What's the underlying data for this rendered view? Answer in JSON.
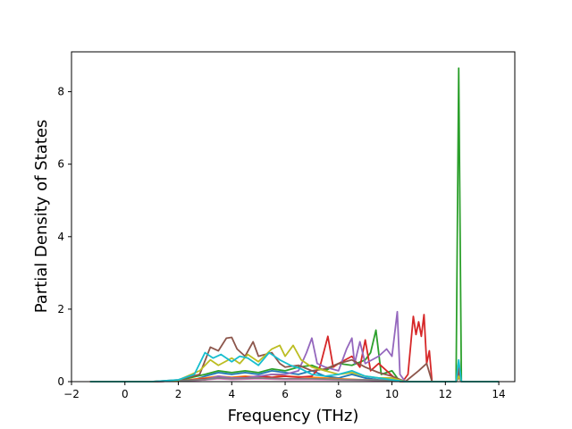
{
  "chart_data": {
    "type": "line",
    "xlabel": "Frequency (THz)",
    "ylabel": "Partial Density of States",
    "xlim": [
      -2,
      14.6
    ],
    "ylim": [
      0,
      9.1
    ],
    "x_ticks": [
      "−2",
      "0",
      "2",
      "4",
      "6",
      "8",
      "10",
      "12",
      "14"
    ],
    "y_ticks": [
      "0",
      "2",
      "4",
      "6",
      "8"
    ],
    "grid": false,
    "legend": "none",
    "series": [
      {
        "color": "#1f77b4",
        "points": [
          [
            -1.3,
            0
          ],
          [
            1,
            0
          ],
          [
            2,
            0.02
          ],
          [
            2.6,
            0.05
          ],
          [
            3,
            0.15
          ],
          [
            3.5,
            0.25
          ],
          [
            4,
            0.2
          ],
          [
            4.5,
            0.25
          ],
          [
            5,
            0.2
          ],
          [
            5.5,
            0.3
          ],
          [
            6,
            0.25
          ],
          [
            6.5,
            0.2
          ],
          [
            7,
            0.3
          ],
          [
            7.5,
            0.15
          ],
          [
            8,
            0.1
          ],
          [
            8.5,
            0.2
          ],
          [
            9,
            0.1
          ],
          [
            9.5,
            0.05
          ],
          [
            10,
            0.05
          ],
          [
            10.5,
            0
          ],
          [
            12.4,
            0
          ],
          [
            12.5,
            0.35
          ],
          [
            12.6,
            0
          ],
          [
            14,
            0
          ]
        ]
      },
      {
        "color": "#ff7f0e",
        "points": [
          [
            -1.3,
            0
          ],
          [
            1,
            0
          ],
          [
            2,
            0.02
          ],
          [
            3,
            0.1
          ],
          [
            3.5,
            0.15
          ],
          [
            4,
            0.12
          ],
          [
            4.5,
            0.15
          ],
          [
            5,
            0.12
          ],
          [
            5.5,
            0.2
          ],
          [
            6,
            0.15
          ],
          [
            7,
            0.12
          ],
          [
            8,
            0.08
          ],
          [
            9,
            0.05
          ],
          [
            10,
            0.03
          ],
          [
            10.5,
            0
          ],
          [
            12.4,
            0
          ],
          [
            12.5,
            0.15
          ],
          [
            12.6,
            0
          ],
          [
            14,
            0
          ]
        ]
      },
      {
        "color": "#2ca02c",
        "points": [
          [
            -1.3,
            0
          ],
          [
            1,
            0
          ],
          [
            2,
            0.03
          ],
          [
            3,
            0.2
          ],
          [
            3.5,
            0.3
          ],
          [
            4,
            0.25
          ],
          [
            4.5,
            0.3
          ],
          [
            5,
            0.25
          ],
          [
            5.5,
            0.35
          ],
          [
            6,
            0.3
          ],
          [
            6.5,
            0.4
          ],
          [
            7,
            0.45
          ],
          [
            7.5,
            0.3
          ],
          [
            8,
            0.5
          ],
          [
            8.5,
            0.45
          ],
          [
            9,
            0.6
          ],
          [
            9.2,
            0.8
          ],
          [
            9.4,
            1.42
          ],
          [
            9.6,
            0.2
          ],
          [
            10,
            0.3
          ],
          [
            10.3,
            0
          ],
          [
            12.4,
            0
          ],
          [
            12.5,
            8.65
          ],
          [
            12.6,
            0
          ],
          [
            14,
            0
          ]
        ]
      },
      {
        "color": "#d62728",
        "points": [
          [
            -1.3,
            0
          ],
          [
            1,
            0
          ],
          [
            2,
            0.02
          ],
          [
            3,
            0.08
          ],
          [
            3.5,
            0.12
          ],
          [
            4,
            0.1
          ],
          [
            4.5,
            0.12
          ],
          [
            5,
            0.15
          ],
          [
            5.5,
            0.12
          ],
          [
            6,
            0.15
          ],
          [
            6.5,
            0.12
          ],
          [
            7,
            0.15
          ],
          [
            7.3,
            0.4
          ],
          [
            7.6,
            1.25
          ],
          [
            7.8,
            0.4
          ],
          [
            8,
            0.5
          ],
          [
            8.5,
            0.7
          ],
          [
            8.8,
            0.4
          ],
          [
            9,
            1.15
          ],
          [
            9.2,
            0.3
          ],
          [
            9.5,
            0.5
          ],
          [
            9.8,
            0.3
          ],
          [
            10.1,
            0.1
          ],
          [
            10.4,
            0
          ],
          [
            10.6,
            0.2
          ],
          [
            10.8,
            1.8
          ],
          [
            10.9,
            1.3
          ],
          [
            11,
            1.65
          ],
          [
            11.1,
            1.25
          ],
          [
            11.2,
            1.85
          ],
          [
            11.3,
            0.5
          ],
          [
            11.4,
            0.85
          ],
          [
            11.5,
            0
          ],
          [
            12.4,
            0
          ],
          [
            12.5,
            0.4
          ],
          [
            12.6,
            0
          ],
          [
            14,
            0
          ]
        ]
      },
      {
        "color": "#9467bd",
        "points": [
          [
            -1.3,
            0
          ],
          [
            1,
            0
          ],
          [
            2,
            0.02
          ],
          [
            3,
            0.05
          ],
          [
            3.5,
            0.15
          ],
          [
            4,
            0.1
          ],
          [
            4.5,
            0.1
          ],
          [
            5,
            0.15
          ],
          [
            5.5,
            0.2
          ],
          [
            6,
            0.2
          ],
          [
            6.5,
            0.3
          ],
          [
            6.8,
            0.8
          ],
          [
            7,
            1.2
          ],
          [
            7.2,
            0.5
          ],
          [
            7.5,
            0.4
          ],
          [
            8,
            0.3
          ],
          [
            8.3,
            0.9
          ],
          [
            8.5,
            1.2
          ],
          [
            8.6,
            0.5
          ],
          [
            8.8,
            1.1
          ],
          [
            9,
            0.5
          ],
          [
            9.5,
            0.7
          ],
          [
            9.8,
            0.9
          ],
          [
            10,
            0.7
          ],
          [
            10.2,
            1.93
          ],
          [
            10.3,
            0.2
          ],
          [
            10.5,
            0
          ],
          [
            12.4,
            0
          ],
          [
            12.5,
            0.2
          ],
          [
            12.6,
            0
          ],
          [
            14,
            0
          ]
        ]
      },
      {
        "color": "#8c564b",
        "points": [
          [
            -1.3,
            0
          ],
          [
            1,
            0
          ],
          [
            2,
            0.05
          ],
          [
            2.8,
            0.2
          ],
          [
            3.2,
            0.95
          ],
          [
            3.5,
            0.85
          ],
          [
            3.8,
            1.2
          ],
          [
            4,
            1.22
          ],
          [
            4.2,
            0.9
          ],
          [
            4.5,
            0.7
          ],
          [
            4.8,
            1.1
          ],
          [
            5,
            0.7
          ],
          [
            5.5,
            0.8
          ],
          [
            5.8,
            0.5
          ],
          [
            6,
            0.4
          ],
          [
            6.5,
            0.45
          ],
          [
            7,
            0.3
          ],
          [
            7.5,
            0.35
          ],
          [
            8,
            0.5
          ],
          [
            8.5,
            0.6
          ],
          [
            9,
            0.4
          ],
          [
            9.5,
            0.25
          ],
          [
            10,
            0.15
          ],
          [
            10.5,
            0
          ],
          [
            11,
            0.3
          ],
          [
            11.3,
            0.5
          ],
          [
            11.5,
            0
          ],
          [
            12.4,
            0
          ],
          [
            12.5,
            0.3
          ],
          [
            12.6,
            0
          ],
          [
            14,
            0
          ]
        ]
      },
      {
        "color": "#e377c2",
        "points": [
          [
            -1.3,
            0
          ],
          [
            1,
            0
          ],
          [
            2,
            0.02
          ],
          [
            3,
            0.05
          ],
          [
            3.5,
            0.08
          ],
          [
            4,
            0.06
          ],
          [
            5,
            0.08
          ],
          [
            6,
            0.06
          ],
          [
            7,
            0.06
          ],
          [
            8,
            0.05
          ],
          [
            9,
            0.04
          ],
          [
            10,
            0.02
          ],
          [
            10.5,
            0
          ],
          [
            12.4,
            0
          ],
          [
            12.5,
            0.1
          ],
          [
            12.6,
            0
          ],
          [
            14,
            0
          ]
        ]
      },
      {
        "color": "#7f7f7f",
        "points": [
          [
            -1.3,
            0
          ],
          [
            1,
            0
          ],
          [
            2,
            0.02
          ],
          [
            3,
            0.06
          ],
          [
            3.5,
            0.1
          ],
          [
            4,
            0.08
          ],
          [
            5,
            0.1
          ],
          [
            6,
            0.08
          ],
          [
            7,
            0.08
          ],
          [
            8,
            0.06
          ],
          [
            9,
            0.05
          ],
          [
            10,
            0.03
          ],
          [
            10.5,
            0
          ],
          [
            12.4,
            0
          ],
          [
            12.5,
            0.12
          ],
          [
            12.6,
            0
          ],
          [
            14,
            0
          ]
        ]
      },
      {
        "color": "#bcbd22",
        "points": [
          [
            -1.3,
            0
          ],
          [
            1,
            0
          ],
          [
            2,
            0.04
          ],
          [
            2.8,
            0.3
          ],
          [
            3.2,
            0.6
          ],
          [
            3.5,
            0.45
          ],
          [
            4,
            0.65
          ],
          [
            4.3,
            0.5
          ],
          [
            4.6,
            0.75
          ],
          [
            5,
            0.55
          ],
          [
            5.5,
            0.9
          ],
          [
            5.8,
            1.0
          ],
          [
            6,
            0.7
          ],
          [
            6.3,
            1.0
          ],
          [
            6.6,
            0.6
          ],
          [
            7,
            0.4
          ],
          [
            7.5,
            0.3
          ],
          [
            8,
            0.2
          ],
          [
            8.5,
            0.25
          ],
          [
            9,
            0.15
          ],
          [
            9.5,
            0.1
          ],
          [
            10,
            0.1
          ],
          [
            10.5,
            0
          ],
          [
            12.4,
            0
          ],
          [
            12.5,
            0.15
          ],
          [
            12.6,
            0
          ],
          [
            14,
            0
          ]
        ]
      },
      {
        "color": "#17becf",
        "points": [
          [
            -1.3,
            0
          ],
          [
            1,
            0
          ],
          [
            2,
            0.05
          ],
          [
            2.6,
            0.2
          ],
          [
            3,
            0.8
          ],
          [
            3.3,
            0.65
          ],
          [
            3.6,
            0.75
          ],
          [
            4,
            0.55
          ],
          [
            4.3,
            0.7
          ],
          [
            4.6,
            0.65
          ],
          [
            5,
            0.45
          ],
          [
            5.4,
            0.8
          ],
          [
            5.8,
            0.6
          ],
          [
            6.2,
            0.45
          ],
          [
            6.6,
            0.35
          ],
          [
            7,
            0.2
          ],
          [
            7.5,
            0.15
          ],
          [
            8,
            0.2
          ],
          [
            8.5,
            0.3
          ],
          [
            9,
            0.15
          ],
          [
            9.5,
            0.1
          ],
          [
            10,
            0.05
          ],
          [
            10.5,
            0
          ],
          [
            12.4,
            0
          ],
          [
            12.5,
            0.6
          ],
          [
            12.6,
            0
          ],
          [
            14,
            0
          ]
        ]
      }
    ]
  }
}
